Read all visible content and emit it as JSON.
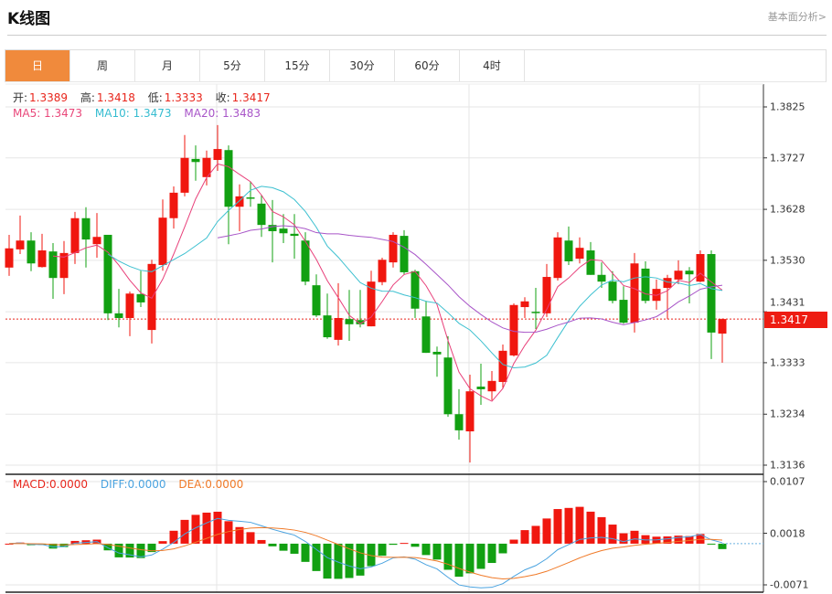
{
  "header": {
    "title": "K线图",
    "link": "基本面分析>"
  },
  "tabs": [
    {
      "label": "日",
      "active": true
    },
    {
      "label": "周"
    },
    {
      "label": "月"
    },
    {
      "label": "5分"
    },
    {
      "label": "15分"
    },
    {
      "label": "30分"
    },
    {
      "label": "60分"
    },
    {
      "label": "4时"
    }
  ],
  "ohlc": {
    "open_label": "开:",
    "open": "1.3389",
    "high_label": "高:",
    "high": "1.3418",
    "low_label": "低:",
    "low": "1.3333",
    "close_label": "收:",
    "close": "1.3417"
  },
  "ma": {
    "ma5_label": "MA5: 1.3473",
    "ma10_label": "MA10: 1.3473",
    "ma20_label": "MA20: 1.3483"
  },
  "macd": {
    "macd_label": "MACD:0.0000",
    "diff_label": "DIFF:0.0000",
    "dea_label": "DEA:0.0000"
  },
  "colors": {
    "up": "#f0170f",
    "down": "#12a012",
    "ma5": "#e8407a",
    "ma10": "#3cc0d0",
    "ma20": "#a855c8",
    "diff": "#4aa3e0",
    "dea": "#f07a28",
    "accent": "#f08a3c"
  },
  "chart_data": [
    {
      "type": "candlestick",
      "ylim": [
        1.3136,
        1.3825
      ],
      "y_ticks": [
        "1.3825",
        "1.3727",
        "1.3628",
        "1.3530",
        "1.3431",
        "1.3333",
        "1.3234",
        "1.3136"
      ],
      "current_price": "1.3417",
      "grid": true,
      "ohlc": [
        [
          1.3516,
          1.3579,
          1.35,
          1.3553
        ],
        [
          1.3551,
          1.3616,
          1.3542,
          1.3568
        ],
        [
          1.3568,
          1.3584,
          1.3509,
          1.3524
        ],
        [
          1.3517,
          1.3581,
          1.3516,
          1.3549
        ],
        [
          1.3547,
          1.3563,
          1.3456,
          1.3496
        ],
        [
          1.3496,
          1.3567,
          1.3465,
          1.3544
        ],
        [
          1.3544,
          1.3623,
          1.3523,
          1.3611
        ],
        [
          1.3611,
          1.3632,
          1.3516,
          1.357
        ],
        [
          1.3561,
          1.3621,
          1.3535,
          1.3575
        ],
        [
          1.3579,
          1.3579,
          1.3415,
          1.3428
        ],
        [
          1.3428,
          1.3475,
          1.3401,
          1.3419
        ],
        [
          1.3419,
          1.347,
          1.3384,
          1.3466
        ],
        [
          1.3465,
          1.351,
          1.344,
          1.3449
        ],
        [
          1.3396,
          1.3531,
          1.337,
          1.3523
        ],
        [
          1.3521,
          1.3647,
          1.351,
          1.3612
        ],
        [
          1.3611,
          1.3672,
          1.3591,
          1.366
        ],
        [
          1.366,
          1.3771,
          1.3653,
          1.3727
        ],
        [
          1.3725,
          1.3751,
          1.3683,
          1.3719
        ],
        [
          1.369,
          1.3741,
          1.3674,
          1.3727
        ],
        [
          1.3723,
          1.379,
          1.3702,
          1.3744
        ],
        [
          1.3742,
          1.3751,
          1.3561,
          1.3633
        ],
        [
          1.3633,
          1.3676,
          1.3586,
          1.3653
        ],
        [
          1.3651,
          1.3681,
          1.3633,
          1.3649
        ],
        [
          1.3639,
          1.3656,
          1.3575,
          1.3598
        ],
        [
          1.3598,
          1.3646,
          1.3526,
          1.3586
        ],
        [
          1.3591,
          1.3619,
          1.3563,
          1.3582
        ],
        [
          1.3581,
          1.3619,
          1.3533,
          1.3577
        ],
        [
          1.3568,
          1.3584,
          1.3482,
          1.3489
        ],
        [
          1.3482,
          1.3503,
          1.3421,
          1.3424
        ],
        [
          1.3424,
          1.3466,
          1.3379,
          1.3382
        ],
        [
          1.3377,
          1.3486,
          1.3366,
          1.3419
        ],
        [
          1.3417,
          1.3473,
          1.3375,
          1.3407
        ],
        [
          1.3415,
          1.3473,
          1.3401,
          1.3407
        ],
        [
          1.3403,
          1.351,
          1.3403,
          1.3489
        ],
        [
          1.3488,
          1.3535,
          1.3482,
          1.3531
        ],
        [
          1.3526,
          1.3584,
          1.3516,
          1.3579
        ],
        [
          1.3577,
          1.3588,
          1.3503,
          1.3507
        ],
        [
          1.3509,
          1.3512,
          1.3419,
          1.3437
        ],
        [
          1.3422,
          1.3452,
          1.3352,
          1.3352
        ],
        [
          1.3354,
          1.3364,
          1.3306,
          1.3349
        ],
        [
          1.3343,
          1.3384,
          1.3229,
          1.3234
        ],
        [
          1.3234,
          1.3282,
          1.3185,
          1.3203
        ],
        [
          1.3201,
          1.331,
          1.3141,
          1.3278
        ],
        [
          1.3287,
          1.3331,
          1.3252,
          1.3282
        ],
        [
          1.3278,
          1.3317,
          1.3261,
          1.3298
        ],
        [
          1.3296,
          1.3368,
          1.3284,
          1.3356
        ],
        [
          1.3347,
          1.3447,
          1.3345,
          1.3444
        ],
        [
          1.344,
          1.3459,
          1.3419,
          1.3451
        ],
        [
          1.3431,
          1.3477,
          1.3398,
          1.3429
        ],
        [
          1.3428,
          1.3523,
          1.3421,
          1.3498
        ],
        [
          1.3496,
          1.3584,
          1.3491,
          1.3574
        ],
        [
          1.3568,
          1.3595,
          1.3521,
          1.3528
        ],
        [
          1.3533,
          1.3574,
          1.3524,
          1.3554
        ],
        [
          1.3549,
          1.3565,
          1.3502,
          1.3502
        ],
        [
          1.3502,
          1.3526,
          1.3477,
          1.3489
        ],
        [
          1.3489,
          1.3509,
          1.3447,
          1.3452
        ],
        [
          1.3454,
          1.348,
          1.3408,
          1.341
        ],
        [
          1.341,
          1.3544,
          1.3391,
          1.3524
        ],
        [
          1.3514,
          1.3528,
          1.3447,
          1.3452
        ],
        [
          1.3452,
          1.3493,
          1.3435,
          1.3475
        ],
        [
          1.3477,
          1.3502,
          1.3417,
          1.3496
        ],
        [
          1.3493,
          1.353,
          1.3484,
          1.351
        ],
        [
          1.351,
          1.3517,
          1.3447,
          1.3503
        ],
        [
          1.3489,
          1.3549,
          1.3488,
          1.3542
        ],
        [
          1.3542,
          1.3549,
          1.334,
          1.3391
        ],
        [
          1.3389,
          1.3418,
          1.3333,
          1.3417
        ]
      ],
      "series": [
        {
          "name": "MA5"
        },
        {
          "name": "MA10"
        },
        {
          "name": "MA20"
        }
      ]
    },
    {
      "type": "bar+line",
      "ylim": [
        -0.0071,
        0.0107
      ],
      "y_ticks": [
        "0.0107",
        "0.0018",
        "-0.0071"
      ],
      "series": [
        {
          "name": "MACD"
        },
        {
          "name": "DIFF"
        },
        {
          "name": "DEA"
        }
      ]
    }
  ]
}
